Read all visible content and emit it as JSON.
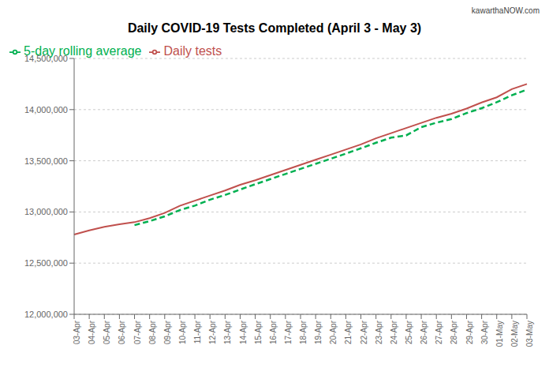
{
  "chart_data": {
    "type": "line",
    "title": "Daily COVID-19 Tests Completed (April 3 - May 3)",
    "annotations": [
      "kawarthaNOW.com"
    ],
    "categories": [
      "03-Apr",
      "04-Apr",
      "05-Apr",
      "06-Apr",
      "07-Apr",
      "08-Apr",
      "09-Apr",
      "10-Apr",
      "11-Apr",
      "12-Apr",
      "13-Apr",
      "14-Apr",
      "15-Apr",
      "16-Apr",
      "17-Apr",
      "18-Apr",
      "19-Apr",
      "20-Apr",
      "21-Apr",
      "22-Apr",
      "23-Apr",
      "24-Apr",
      "25-Apr",
      "26-Apr",
      "27-Apr",
      "28-Apr",
      "29-Apr",
      "30-Apr",
      "01-May",
      "02-May",
      "03-May"
    ],
    "series": [
      {
        "name": "Daily tests",
        "color": "#c0504d",
        "line_style": "solid",
        "values": [
          12780000,
          12820000,
          12855000,
          12880000,
          12900000,
          12940000,
          12990000,
          13060000,
          13110000,
          13160000,
          13210000,
          13265000,
          13310000,
          13360000,
          13410000,
          13460000,
          13510000,
          13560000,
          13610000,
          13660000,
          13720000,
          13770000,
          13820000,
          13870000,
          13920000,
          13960000,
          14010000,
          14070000,
          14120000,
          14200000,
          14250000
        ]
      },
      {
        "name": "5-day rolling average",
        "color": "#00b050",
        "line_style": "dashed",
        "values": [
          null,
          null,
          null,
          null,
          12871000,
          12910000,
          12957000,
          13018000,
          13062000,
          13120000,
          13166000,
          13219000,
          13271000,
          13321000,
          13371000,
          13421000,
          13470000,
          13520000,
          13570000,
          13622000,
          13676000,
          13726000,
          13748000,
          13828000,
          13872000,
          13908000,
          13966000,
          14014000,
          14072000,
          14140000,
          14196000
        ]
      }
    ],
    "ylim": [
      12000000,
      14500000
    ],
    "yticks": [
      {
        "value": 12000000,
        "label": "12,000,000"
      },
      {
        "value": 12500000,
        "label": "12,500,000"
      },
      {
        "value": 13000000,
        "label": "13,000,000"
      },
      {
        "value": 13500000,
        "label": "13,500,000"
      },
      {
        "value": 14000000,
        "label": "14,000,000"
      },
      {
        "value": 14500000,
        "label": "14,500,000"
      }
    ],
    "grid": true,
    "legend": "upper left"
  }
}
